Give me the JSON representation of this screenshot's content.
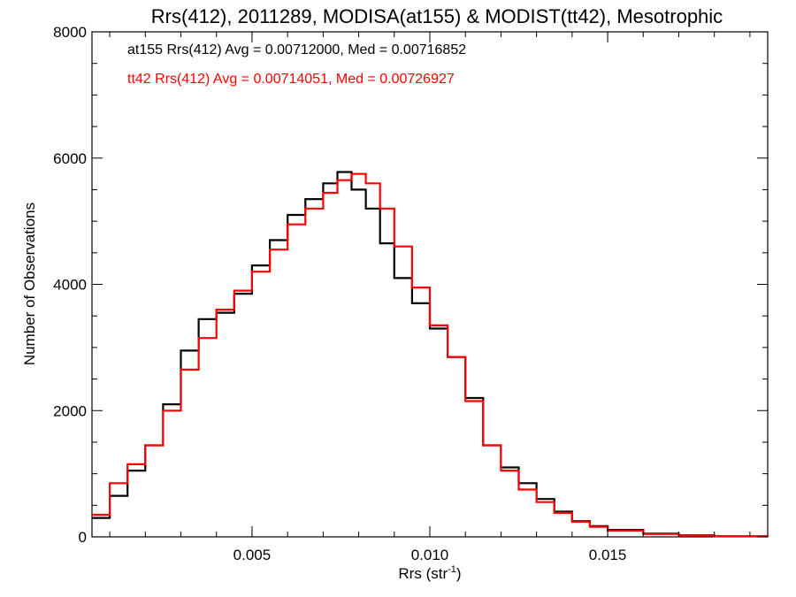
{
  "chart_data": {
    "type": "line",
    "title": "Rrs(412), 2011289, MODISA(at155) & MODIST(tt42), Mesotrophic",
    "xlabel_main": "Rrs (str",
    "xlabel_sup": "-1",
    "xlabel_end": ")",
    "ylabel": "Number of Observations",
    "xlim": [
      0.0005,
      0.0195
    ],
    "ylim": [
      0,
      8000
    ],
    "x_ticks": [
      0.005,
      0.01,
      0.015
    ],
    "x_tick_labels": [
      "0.005",
      "0.010",
      "0.015"
    ],
    "y_ticks": [
      0,
      2000,
      4000,
      6000,
      8000
    ],
    "y_tick_labels": [
      "0",
      "2000",
      "4000",
      "6000",
      "8000"
    ],
    "grid": false,
    "legend_position": "top-left",
    "series": [
      {
        "name": "at155 Rrs(412) Avg = 0.00712000, Med = 0.00716852",
        "color": "#000000",
        "x": [
          0.0005,
          0.001,
          0.0015,
          0.002,
          0.0025,
          0.003,
          0.0035,
          0.004,
          0.0045,
          0.005,
          0.0055,
          0.006,
          0.0065,
          0.007,
          0.0074,
          0.0078,
          0.0082,
          0.0086,
          0.009,
          0.0095,
          0.01,
          0.0105,
          0.011,
          0.0115,
          0.012,
          0.0125,
          0.013,
          0.0135,
          0.014,
          0.0145,
          0.015,
          0.016,
          0.017,
          0.018,
          0.0195
        ],
        "y": [
          300,
          650,
          1050,
          1450,
          2100,
          2950,
          3450,
          3550,
          3850,
          4300,
          4700,
          5100,
          5350,
          5600,
          5780,
          5500,
          5200,
          4650,
          4100,
          3700,
          3300,
          2850,
          2200,
          1450,
          1100,
          850,
          600,
          400,
          250,
          170,
          110,
          50,
          25,
          10,
          5
        ]
      },
      {
        "name": "tt42 Rrs(412) Avg = 0.00714051, Med = 0.00726927",
        "color": "#ff0000",
        "x": [
          0.0005,
          0.001,
          0.0015,
          0.002,
          0.0025,
          0.003,
          0.0035,
          0.004,
          0.0045,
          0.005,
          0.0055,
          0.006,
          0.0065,
          0.007,
          0.0074,
          0.0078,
          0.0082,
          0.0086,
          0.009,
          0.0095,
          0.01,
          0.0105,
          0.011,
          0.0115,
          0.012,
          0.0125,
          0.013,
          0.0135,
          0.014,
          0.0145,
          0.015,
          0.016,
          0.017,
          0.018,
          0.0195
        ],
        "y": [
          350,
          850,
          1150,
          1450,
          2000,
          2650,
          3150,
          3600,
          3900,
          4200,
          4550,
          4950,
          5200,
          5450,
          5650,
          5750,
          5600,
          5200,
          4600,
          3950,
          3350,
          2850,
          2150,
          1450,
          1050,
          750,
          550,
          380,
          240,
          160,
          100,
          45,
          20,
          8,
          4
        ]
      }
    ]
  }
}
